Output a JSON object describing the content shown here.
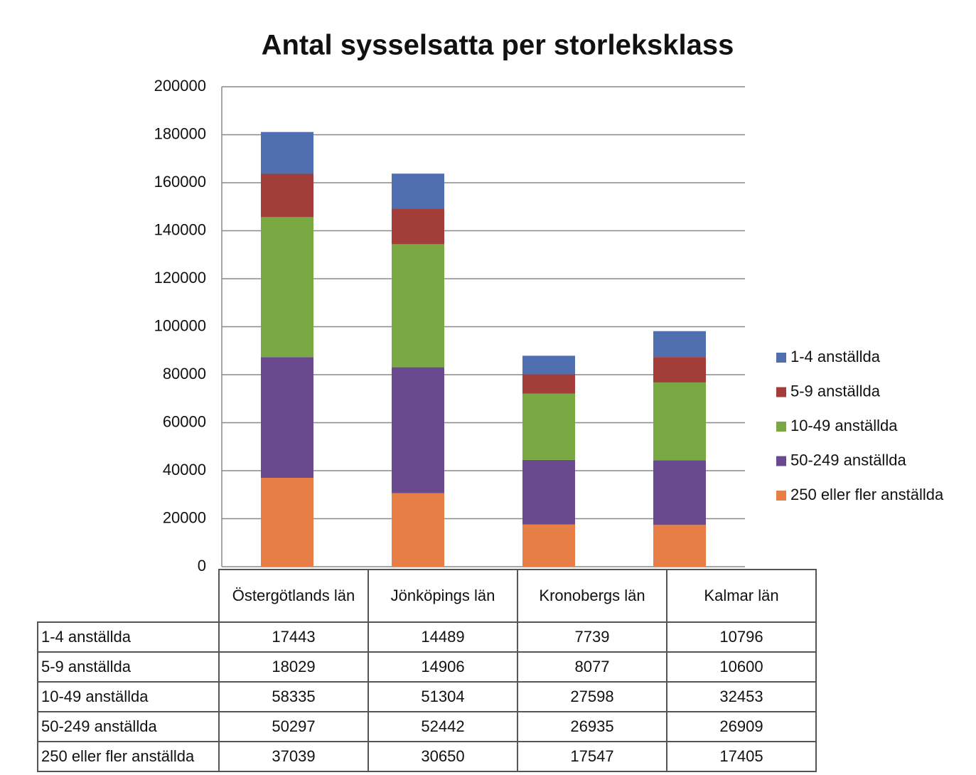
{
  "chart_data": {
    "type": "stacked_bar",
    "title": "Antal sysselsatta per storleksklass",
    "categories": [
      "Östergötlands län",
      "Jönköpings län",
      "Kronobergs län",
      "Kalmar län"
    ],
    "series": [
      {
        "name": "1-4 anställda",
        "color": "#4f6fb0",
        "values": [
          17443,
          14489,
          7739,
          10796
        ]
      },
      {
        "name": "5-9 anställda",
        "color": "#a33d3a",
        "values": [
          18029,
          14906,
          8077,
          10600
        ]
      },
      {
        "name": "10-49 anställda",
        "color": "#7aa843",
        "values": [
          58335,
          51304,
          27598,
          32453
        ]
      },
      {
        "name": "50-249 anställda",
        "color": "#6a4a8e",
        "values": [
          50297,
          52442,
          26935,
          26909
        ]
      },
      {
        "name": "250 eller fler anställda",
        "color": "#e67e45",
        "values": [
          37039,
          30650,
          17547,
          17405
        ]
      }
    ],
    "ylim": [
      0,
      200000
    ],
    "yticks": [
      0,
      20000,
      40000,
      60000,
      80000,
      100000,
      120000,
      140000,
      160000,
      180000,
      200000
    ],
    "grid": true,
    "legend": "right"
  }
}
